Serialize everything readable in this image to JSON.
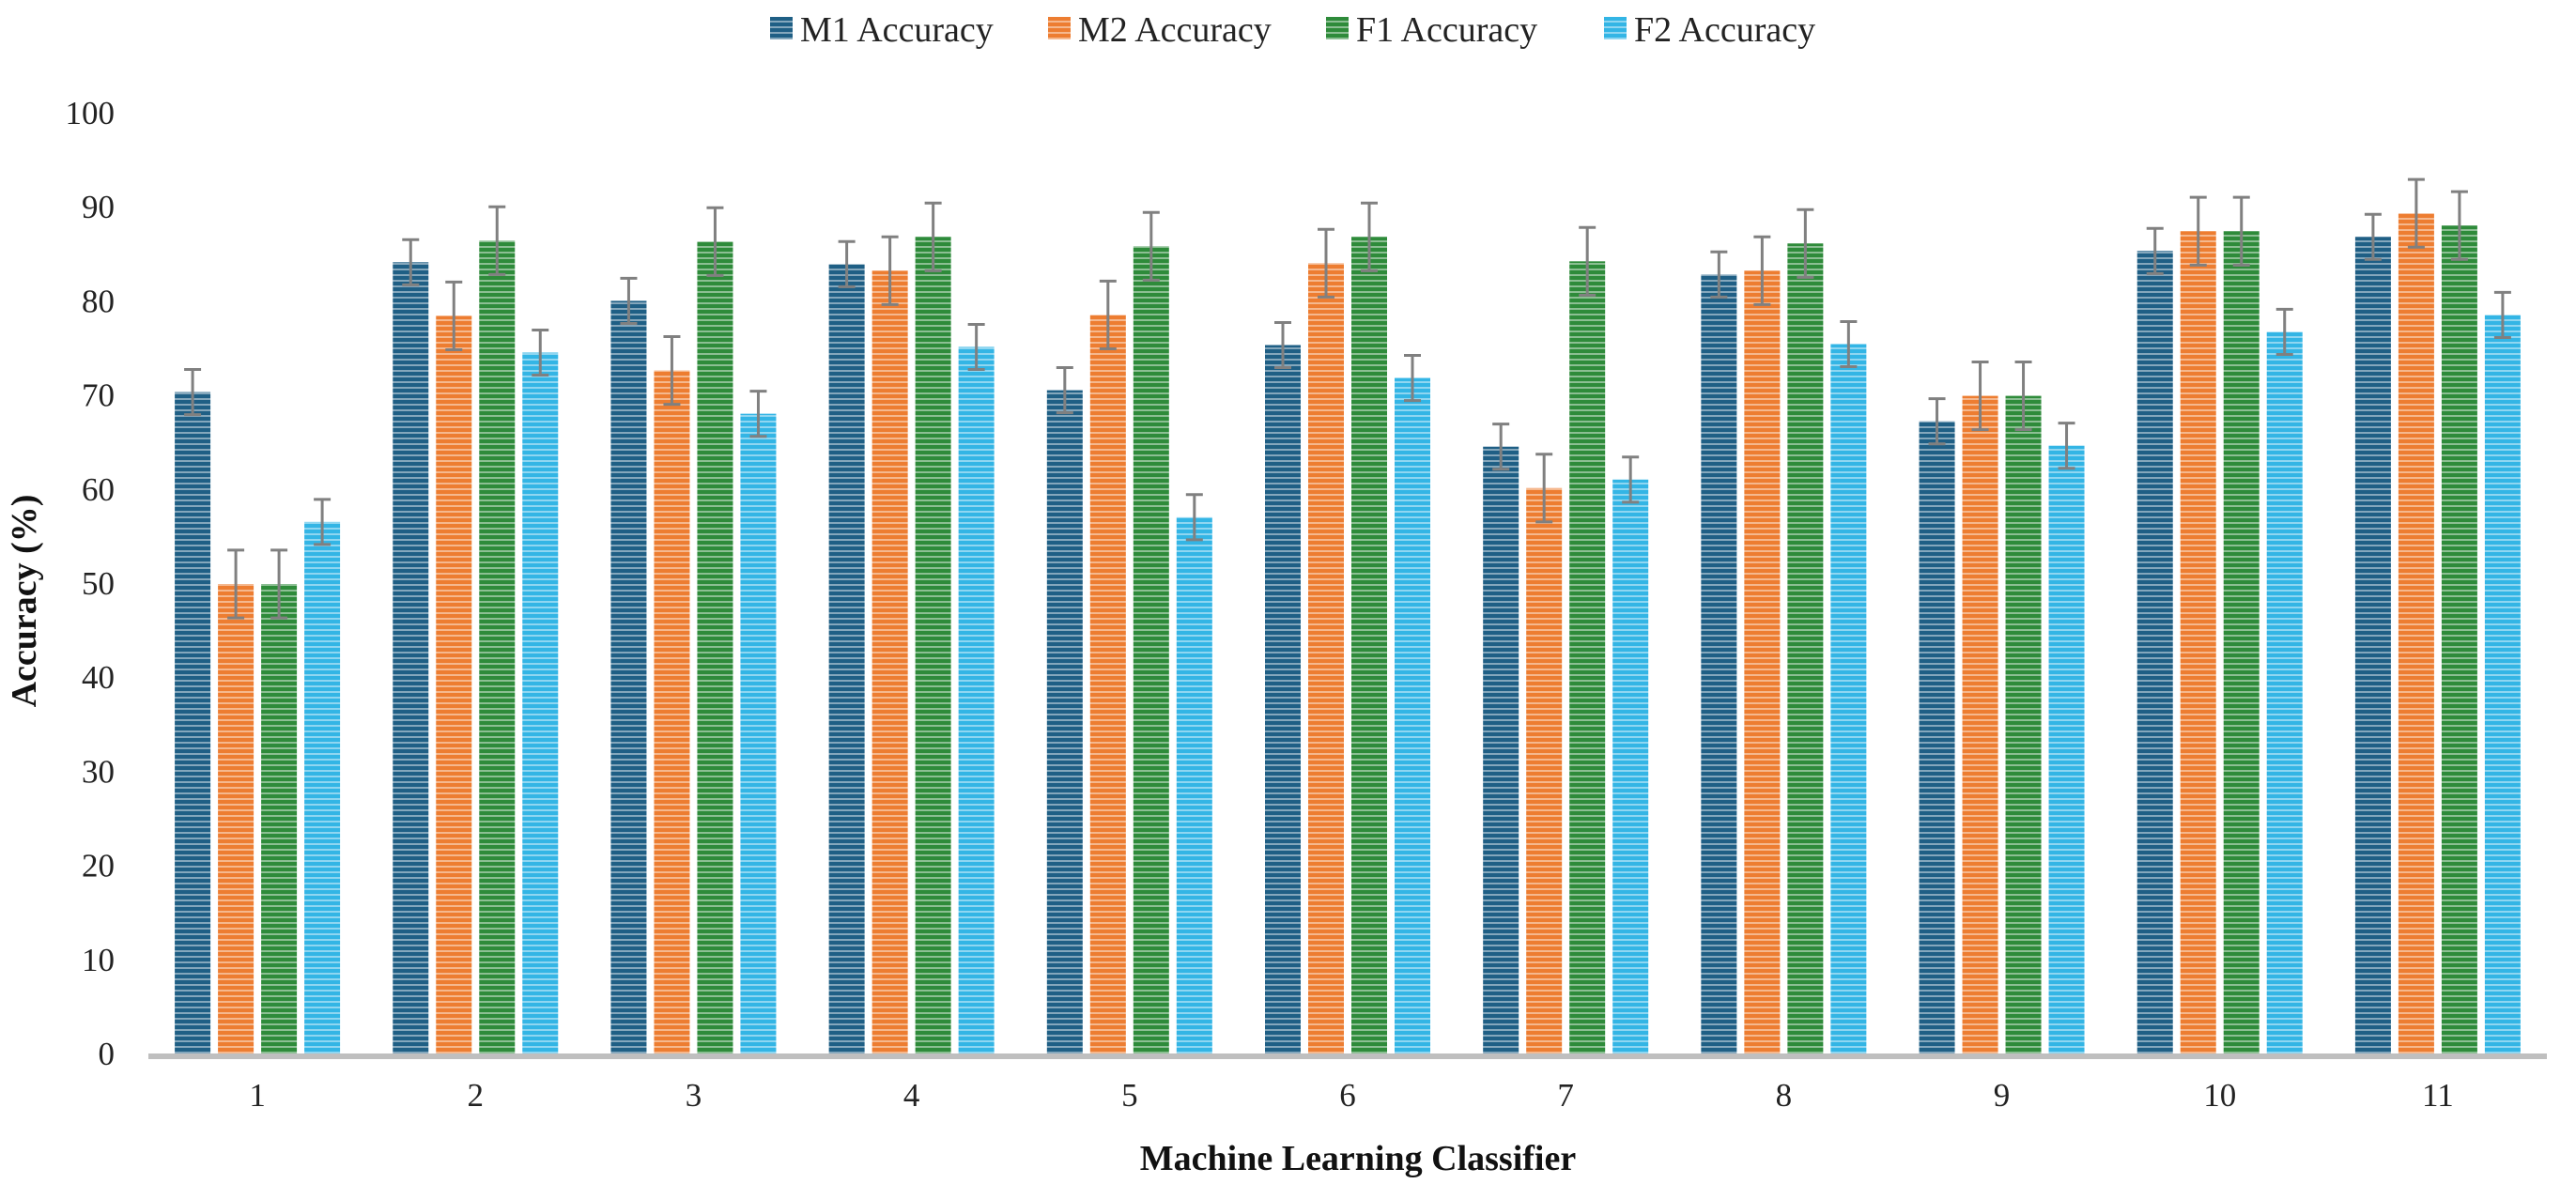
{
  "chart_data": {
    "type": "bar",
    "title": "",
    "xlabel": "Machine Learning Classifier",
    "ylabel": "Accuracy  (%)",
    "ylim": [
      0,
      100
    ],
    "yticks": [
      "0",
      "10",
      "20",
      "30",
      "40",
      "50",
      "60",
      "70",
      "80",
      "90",
      "100"
    ],
    "grid": false,
    "legend_position": "top-center",
    "categories": [
      "1",
      "2",
      "3",
      "4",
      "5",
      "6",
      "7",
      "8",
      "9",
      "10",
      "11"
    ],
    "series": [
      {
        "name": "M1 Accuracy",
        "color": "#1f5f85",
        "values": [
          70.3,
          84.1,
          80.0,
          83.9,
          70.5,
          75.3,
          64.5,
          82.8,
          67.2,
          85.3,
          86.8
        ],
        "errors": [
          2.4,
          2.4,
          2.4,
          2.4,
          2.4,
          2.4,
          2.4,
          2.4,
          2.4,
          2.4,
          2.4
        ]
      },
      {
        "name": "M2 Accuracy",
        "color": "#ed7d31",
        "values": [
          49.9,
          78.4,
          72.6,
          83.2,
          78.5,
          84.0,
          60.1,
          83.2,
          69.9,
          87.4,
          89.3
        ],
        "errors": [
          3.6,
          3.6,
          3.6,
          3.6,
          3.6,
          3.6,
          3.6,
          3.6,
          3.6,
          3.6,
          3.6
        ]
      },
      {
        "name": "F1 Accuracy",
        "color": "#2e8b3a",
        "values": [
          49.9,
          86.4,
          86.3,
          86.8,
          85.8,
          86.8,
          84.2,
          86.1,
          69.9,
          87.4,
          88.0
        ],
        "errors": [
          3.6,
          3.6,
          3.6,
          3.6,
          3.6,
          3.6,
          3.6,
          3.6,
          3.6,
          3.6,
          3.6
        ]
      },
      {
        "name": "F2 Accuracy",
        "color": "#33b5e5",
        "values": [
          56.5,
          74.5,
          68.0,
          75.1,
          57.0,
          71.8,
          61.0,
          75.4,
          64.6,
          76.7,
          78.5
        ],
        "errors": [
          2.4,
          2.4,
          2.4,
          2.4,
          2.4,
          2.4,
          2.4,
          2.4,
          2.4,
          2.4,
          2.4
        ]
      }
    ]
  }
}
